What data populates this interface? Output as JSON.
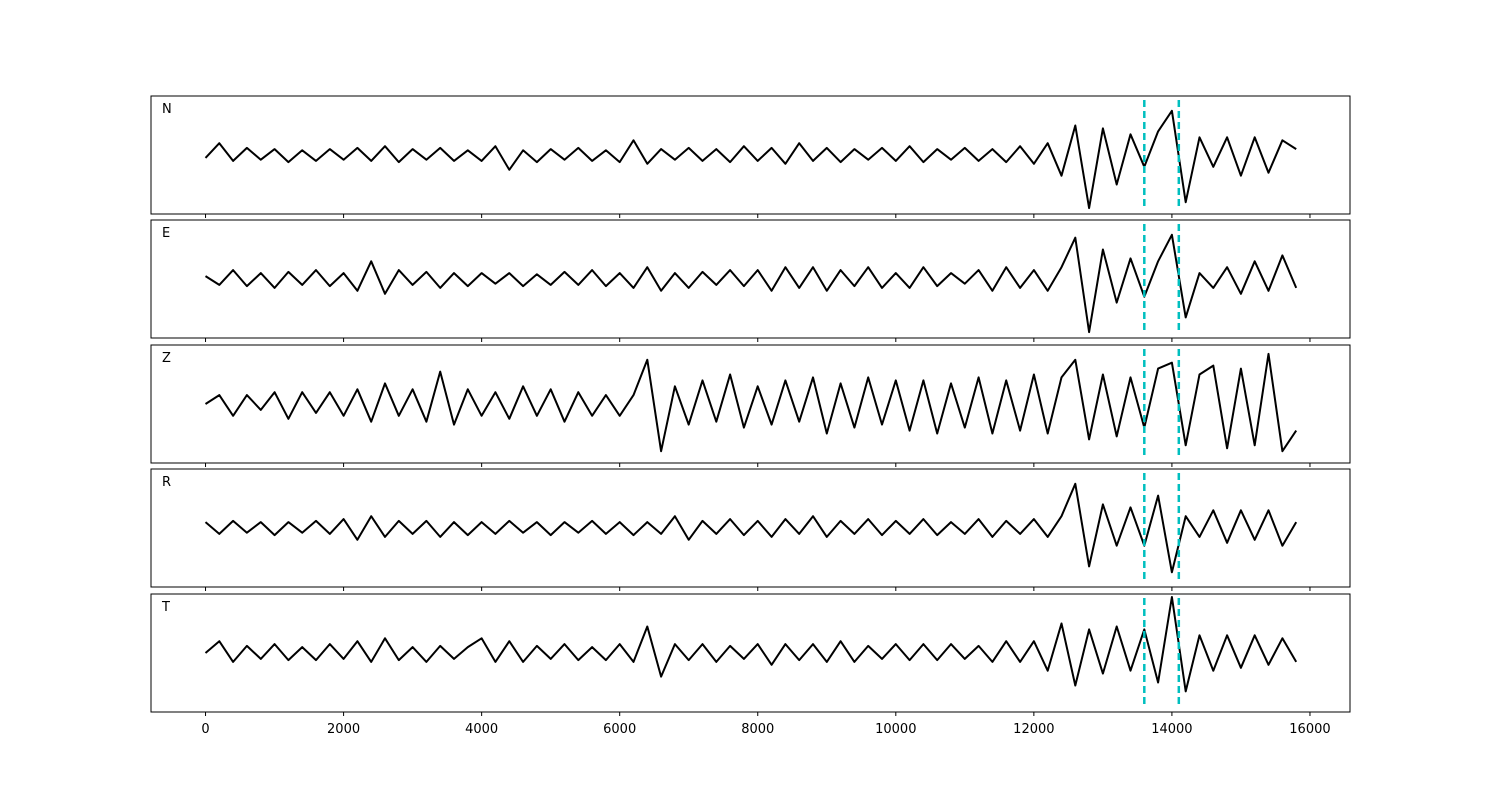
{
  "chart_data": {
    "type": "line",
    "x": [
      0,
      200,
      400,
      600,
      800,
      1000,
      1200,
      1400,
      1600,
      1800,
      2000,
      2200,
      2400,
      2600,
      2800,
      3000,
      3200,
      3400,
      3600,
      3800,
      4000,
      4200,
      4400,
      4600,
      4800,
      5000,
      5200,
      5400,
      5600,
      5800,
      6000,
      6200,
      6400,
      6600,
      6800,
      7000,
      7200,
      7400,
      7600,
      7800,
      8000,
      8200,
      8400,
      8600,
      8800,
      9000,
      9200,
      9400,
      9600,
      9800,
      10000,
      10200,
      10400,
      10600,
      10800,
      11000,
      11200,
      11400,
      11600,
      11800,
      12000,
      12200,
      12400,
      12600,
      12800,
      13000,
      13200,
      13400,
      13600,
      13800,
      14000,
      14200,
      14400,
      14600,
      14800,
      15000,
      15200,
      15400,
      15600,
      15800
    ],
    "xlim": [
      -790,
      16580
    ],
    "xticks": [
      0,
      2000,
      4000,
      6000,
      8000,
      10000,
      12000,
      14000,
      16000
    ],
    "ylim": [
      -1,
      1
    ],
    "series": [
      {
        "name": "N",
        "color": "#000000",
        "values": [
          -0.05,
          0.2,
          -0.1,
          0.12,
          -0.08,
          0.1,
          -0.12,
          0.08,
          -0.1,
          0.1,
          -0.08,
          0.12,
          -0.1,
          0.15,
          -0.12,
          0.1,
          -0.08,
          0.12,
          -0.1,
          0.08,
          -0.1,
          0.15,
          -0.25,
          0.08,
          -0.12,
          0.1,
          -0.08,
          0.12,
          -0.1,
          0.08,
          -0.12,
          0.25,
          -0.15,
          0.1,
          -0.08,
          0.12,
          -0.1,
          0.1,
          -0.12,
          0.15,
          -0.1,
          0.12,
          -0.15,
          0.2,
          -0.1,
          0.12,
          -0.12,
          0.1,
          -0.08,
          0.12,
          -0.1,
          0.15,
          -0.12,
          0.1,
          -0.08,
          0.12,
          -0.1,
          0.1,
          -0.12,
          0.15,
          -0.15,
          0.2,
          -0.35,
          0.5,
          -0.9,
          0.45,
          -0.5,
          0.35,
          -0.2,
          0.4,
          0.75,
          -0.8,
          0.3,
          -0.2,
          0.3,
          -0.35,
          0.3,
          -0.3,
          0.25,
          0.1
        ]
      },
      {
        "name": "E",
        "color": "#000000",
        "values": [
          0.05,
          -0.1,
          0.15,
          -0.12,
          0.1,
          -0.15,
          0.12,
          -0.1,
          0.15,
          -0.12,
          0.1,
          -0.2,
          0.3,
          -0.25,
          0.15,
          -0.1,
          0.12,
          -0.15,
          0.1,
          -0.12,
          0.1,
          -0.08,
          0.1,
          -0.12,
          0.08,
          -0.1,
          0.12,
          -0.1,
          0.15,
          -0.12,
          0.1,
          -0.15,
          0.2,
          -0.2,
          0.1,
          -0.15,
          0.12,
          -0.1,
          0.15,
          -0.12,
          0.15,
          -0.2,
          0.2,
          -0.15,
          0.2,
          -0.2,
          0.15,
          -0.12,
          0.2,
          -0.15,
          0.1,
          -0.15,
          0.2,
          -0.12,
          0.1,
          -0.08,
          0.15,
          -0.2,
          0.2,
          -0.15,
          0.15,
          -0.2,
          0.2,
          0.7,
          -0.9,
          0.5,
          -0.4,
          0.35,
          -0.3,
          0.3,
          0.75,
          -0.65,
          0.1,
          -0.15,
          0.2,
          -0.25,
          0.3,
          -0.2,
          0.4,
          -0.15
        ]
      },
      {
        "name": "Z",
        "color": "#000000",
        "values": [
          0.0,
          0.15,
          -0.2,
          0.15,
          -0.1,
          0.2,
          -0.25,
          0.2,
          -0.15,
          0.2,
          -0.2,
          0.25,
          -0.3,
          0.35,
          -0.2,
          0.25,
          -0.3,
          0.55,
          -0.35,
          0.25,
          -0.2,
          0.2,
          -0.25,
          0.3,
          -0.2,
          0.25,
          -0.3,
          0.2,
          -0.2,
          0.15,
          -0.2,
          0.15,
          0.75,
          -0.8,
          0.3,
          -0.35,
          0.4,
          -0.3,
          0.5,
          -0.4,
          0.3,
          -0.35,
          0.4,
          -0.3,
          0.45,
          -0.5,
          0.35,
          -0.4,
          0.45,
          -0.35,
          0.4,
          -0.45,
          0.4,
          -0.5,
          0.35,
          -0.4,
          0.45,
          -0.5,
          0.4,
          -0.45,
          0.5,
          -0.5,
          0.45,
          0.75,
          -0.6,
          0.5,
          -0.55,
          0.45,
          -0.4,
          0.6,
          0.7,
          -0.7,
          0.5,
          0.65,
          -0.75,
          0.6,
          -0.7,
          0.85,
          -0.8,
          -0.45
        ]
      },
      {
        "name": "R",
        "color": "#000000",
        "values": [
          0.1,
          -0.1,
          0.12,
          -0.08,
          0.1,
          -0.12,
          0.1,
          -0.08,
          0.12,
          -0.1,
          0.15,
          -0.2,
          0.2,
          -0.15,
          0.12,
          -0.1,
          0.12,
          -0.15,
          0.1,
          -0.12,
          0.1,
          -0.1,
          0.12,
          -0.08,
          0.1,
          -0.12,
          0.1,
          -0.08,
          0.12,
          -0.1,
          0.1,
          -0.12,
          0.1,
          -0.1,
          0.2,
          -0.2,
          0.12,
          -0.1,
          0.15,
          -0.12,
          0.12,
          -0.15,
          0.15,
          -0.1,
          0.2,
          -0.15,
          0.12,
          -0.1,
          0.15,
          -0.12,
          0.12,
          -0.1,
          0.15,
          -0.12,
          0.1,
          -0.1,
          0.15,
          -0.15,
          0.12,
          -0.1,
          0.15,
          -0.15,
          0.2,
          0.75,
          -0.65,
          0.4,
          -0.3,
          0.35,
          -0.3,
          0.55,
          -0.75,
          0.2,
          -0.15,
          0.3,
          -0.25,
          0.3,
          -0.2,
          0.3,
          -0.3,
          0.1
        ]
      },
      {
        "name": "T",
        "color": "#000000",
        "values": [
          0.0,
          0.2,
          -0.15,
          0.12,
          -0.1,
          0.15,
          -0.12,
          0.1,
          -0.12,
          0.15,
          -0.1,
          0.2,
          -0.15,
          0.25,
          -0.12,
          0.1,
          -0.15,
          0.12,
          -0.1,
          0.1,
          0.25,
          -0.15,
          0.2,
          -0.15,
          0.12,
          -0.1,
          0.15,
          -0.12,
          0.1,
          -0.12,
          0.15,
          -0.15,
          0.45,
          -0.4,
          0.15,
          -0.12,
          0.15,
          -0.15,
          0.12,
          -0.1,
          0.15,
          -0.2,
          0.15,
          -0.12,
          0.15,
          -0.15,
          0.2,
          -0.15,
          0.12,
          -0.1,
          0.15,
          -0.12,
          0.15,
          -0.12,
          0.15,
          -0.1,
          0.12,
          -0.15,
          0.2,
          -0.15,
          0.2,
          -0.3,
          0.5,
          -0.55,
          0.4,
          -0.35,
          0.45,
          -0.3,
          0.4,
          -0.5,
          0.95,
          -0.65,
          0.3,
          -0.3,
          0.3,
          -0.25,
          0.3,
          -0.2,
          0.25,
          -0.15
        ]
      }
    ],
    "markers": [
      13600,
      14100
    ],
    "marker_color": "#00bfbf"
  }
}
